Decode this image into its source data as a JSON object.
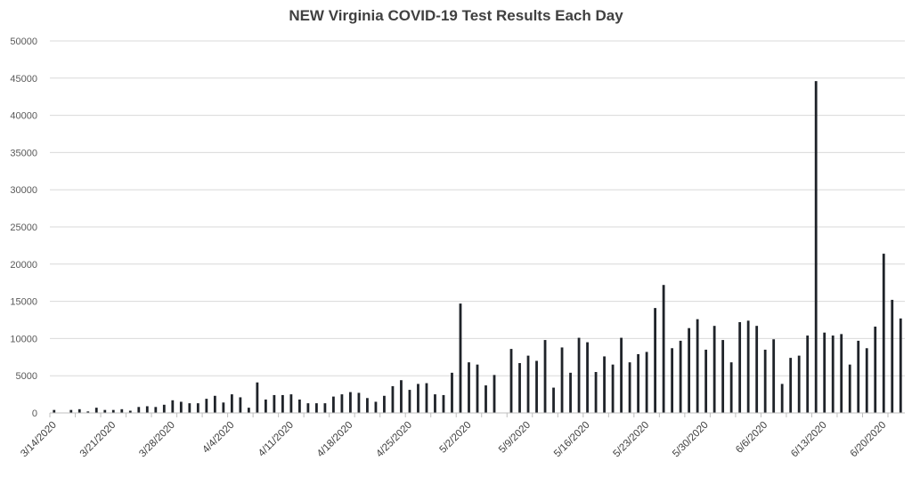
{
  "chart_data": {
    "type": "bar",
    "title": "NEW Virginia COVID-19 Test Results Each Day",
    "xlabel": "",
    "ylabel": "",
    "ylim": [
      0,
      50000
    ],
    "yticks": [
      "0",
      "5000",
      "10000",
      "15000",
      "20000",
      "25000",
      "30000",
      "35000",
      "40000",
      "45000",
      "50000"
    ],
    "xtick_labels": [
      "3/14/2020",
      "3/21/2020",
      "3/28/2020",
      "4/4/2020",
      "4/11/2020",
      "4/18/2020",
      "4/25/2020",
      "5/2/2020",
      "5/9/2020",
      "5/16/2020",
      "5/23/2020",
      "5/30/2020",
      "6/6/2020",
      "6/13/2020",
      "6/20/2020"
    ],
    "grid": true,
    "legend": "none",
    "bar_color": "#1f2329",
    "categories": [
      "3/14/2020",
      "3/15/2020",
      "3/16/2020",
      "3/17/2020",
      "3/18/2020",
      "3/19/2020",
      "3/20/2020",
      "3/21/2020",
      "3/22/2020",
      "3/23/2020",
      "3/24/2020",
      "3/25/2020",
      "3/26/2020",
      "3/27/2020",
      "3/28/2020",
      "3/29/2020",
      "3/30/2020",
      "3/31/2020",
      "4/1/2020",
      "4/2/2020",
      "4/3/2020",
      "4/4/2020",
      "4/5/2020",
      "4/6/2020",
      "4/7/2020",
      "4/8/2020",
      "4/9/2020",
      "4/10/2020",
      "4/11/2020",
      "4/12/2020",
      "4/13/2020",
      "4/14/2020",
      "4/15/2020",
      "4/16/2020",
      "4/17/2020",
      "4/18/2020",
      "4/19/2020",
      "4/20/2020",
      "4/21/2020",
      "4/22/2020",
      "4/23/2020",
      "4/24/2020",
      "4/25/2020",
      "4/26/2020",
      "4/27/2020",
      "4/28/2020",
      "4/29/2020",
      "4/30/2020",
      "5/1/2020",
      "5/2/2020",
      "5/3/2020",
      "5/4/2020",
      "5/5/2020",
      "5/6/2020",
      "5/7/2020",
      "5/8/2020",
      "5/9/2020",
      "5/10/2020",
      "5/11/2020",
      "5/12/2020",
      "5/13/2020",
      "5/14/2020",
      "5/15/2020",
      "5/16/2020",
      "5/17/2020",
      "5/18/2020",
      "5/19/2020",
      "5/20/2020",
      "5/21/2020",
      "5/22/2020",
      "5/23/2020",
      "5/24/2020",
      "5/25/2020",
      "5/26/2020",
      "5/27/2020",
      "5/28/2020",
      "5/29/2020",
      "5/30/2020",
      "5/31/2020",
      "6/1/2020",
      "6/2/2020",
      "6/3/2020",
      "6/4/2020",
      "6/5/2020",
      "6/6/2020",
      "6/7/2020",
      "6/8/2020",
      "6/9/2020",
      "6/10/2020",
      "6/11/2020",
      "6/12/2020",
      "6/13/2020",
      "6/14/2020",
      "6/15/2020",
      "6/16/2020",
      "6/17/2020",
      "6/18/2020",
      "6/19/2020",
      "6/20/2020",
      "6/21/2020",
      "6/22/2020"
    ],
    "values": [
      400,
      0,
      400,
      500,
      200,
      700,
      400,
      400,
      500,
      300,
      800,
      900,
      800,
      1100,
      1700,
      1500,
      1300,
      1300,
      1900,
      2300,
      1400,
      2500,
      2100,
      700,
      4100,
      1800,
      2400,
      2400,
      2500,
      1800,
      1300,
      1300,
      1300,
      2200,
      2500,
      2800,
      2700,
      2000,
      1500,
      2300,
      3600,
      4400,
      3100,
      3900,
      4000,
      2500,
      2400,
      5400,
      14700,
      6800,
      6500,
      3700,
      5100,
      0,
      8600,
      6700,
      7700,
      7000,
      9800,
      3400,
      8800,
      5400,
      10100,
      9500,
      5500,
      7600,
      6500,
      10100,
      6800,
      7900,
      8200,
      14100,
      17200,
      8700,
      9700,
      11400,
      12600,
      8500,
      11700,
      9800,
      6800,
      12200,
      12400,
      11700,
      8500,
      9900,
      3900,
      7400,
      7700,
      10400,
      44600,
      10800,
      10400,
      10600,
      6500,
      9700,
      8700,
      11600,
      21400,
      15200,
      12700
    ]
  }
}
